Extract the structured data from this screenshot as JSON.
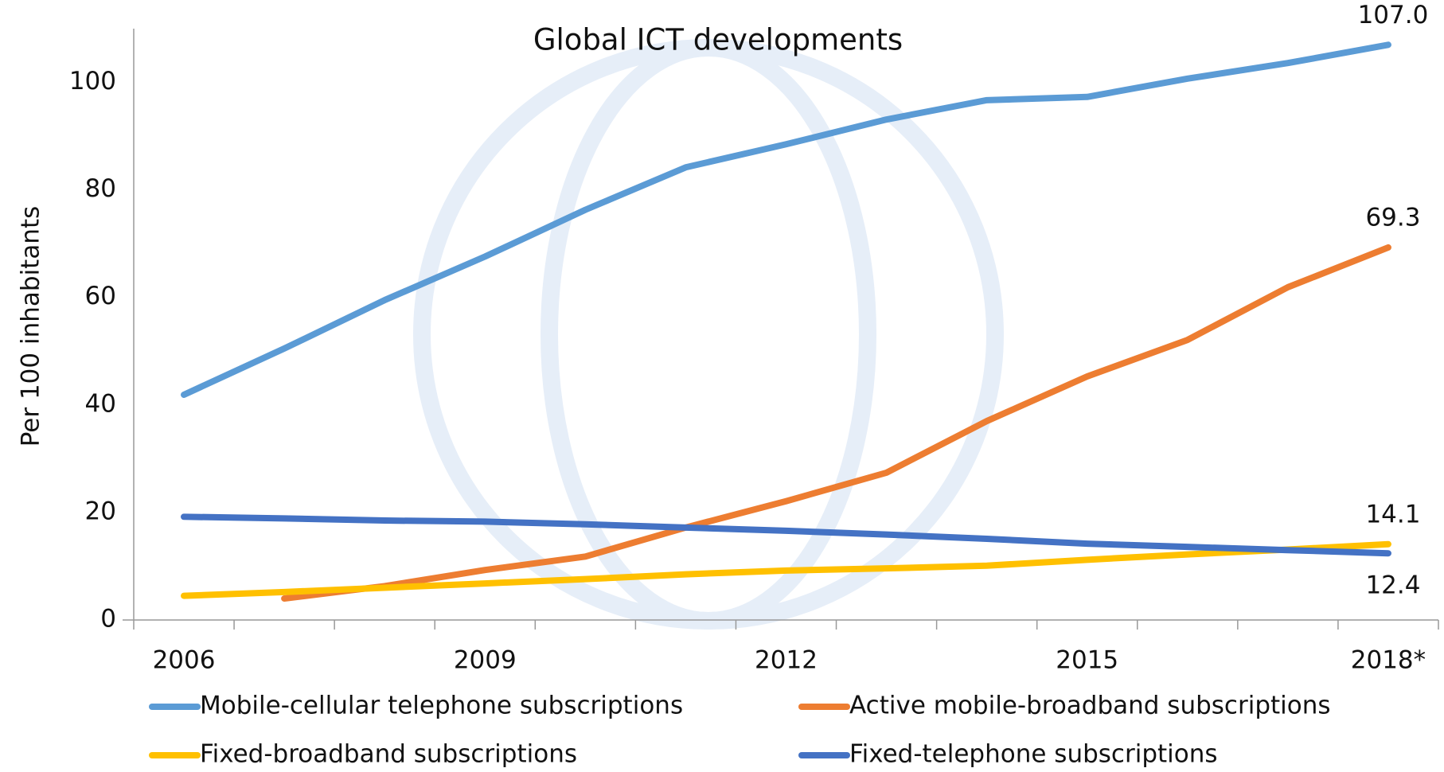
{
  "chart_data": {
    "type": "line",
    "title": "Global ICT developments",
    "y_label": "Per 100 inhabitants",
    "categories": [
      "2006",
      null,
      null,
      "2009",
      null,
      null,
      "2012",
      null,
      null,
      "2015",
      null,
      null,
      "2018*"
    ],
    "series": [
      {
        "name": "Mobile-cellular telephone subscriptions",
        "color": "#5b9bd5",
        "values": [
          41.9,
          50.5,
          59.5,
          67.6,
          76.3,
          84.2,
          88.5,
          93.1,
          96.7,
          97.3,
          100.7,
          103.6,
          107.0
        ],
        "value_labels": [
          null,
          null,
          null,
          null,
          null,
          null,
          null,
          null,
          null,
          null,
          null,
          null,
          "107.0"
        ]
      },
      {
        "name": "Active mobile-broadband subscriptions",
        "color": "#ed7d31",
        "values": [
          null,
          4.0,
          6.3,
          9.3,
          11.8,
          17.2,
          22.1,
          27.4,
          37.0,
          45.3,
          52.1,
          61.9,
          69.3
        ],
        "value_labels": [
          null,
          null,
          null,
          null,
          null,
          null,
          null,
          null,
          null,
          null,
          null,
          null,
          "69.3"
        ]
      },
      {
        "name": "Fixed-broadband subscriptions",
        "color": "#ffc000",
        "values": [
          4.5,
          5.2,
          6.0,
          6.8,
          7.6,
          8.5,
          9.2,
          9.6,
          10.1,
          11.2,
          12.2,
          13.1,
          14.1
        ],
        "value_labels": [
          null,
          null,
          null,
          null,
          null,
          null,
          null,
          null,
          null,
          null,
          null,
          null,
          "14.1"
        ]
      },
      {
        "name": "Fixed-telephone subscriptions",
        "color": "#4472c4",
        "values": [
          19.2,
          18.9,
          18.5,
          18.3,
          17.8,
          17.2,
          16.6,
          15.9,
          15.1,
          14.2,
          13.6,
          13.0,
          12.4
        ],
        "value_labels": [
          null,
          null,
          null,
          null,
          null,
          null,
          null,
          null,
          null,
          null,
          null,
          null,
          "12.4"
        ]
      }
    ],
    "ylim": [
      0,
      110
    ],
    "yticks": [
      0,
      20,
      40,
      60,
      80,
      100
    ],
    "grid": false,
    "legend": "bottom"
  }
}
